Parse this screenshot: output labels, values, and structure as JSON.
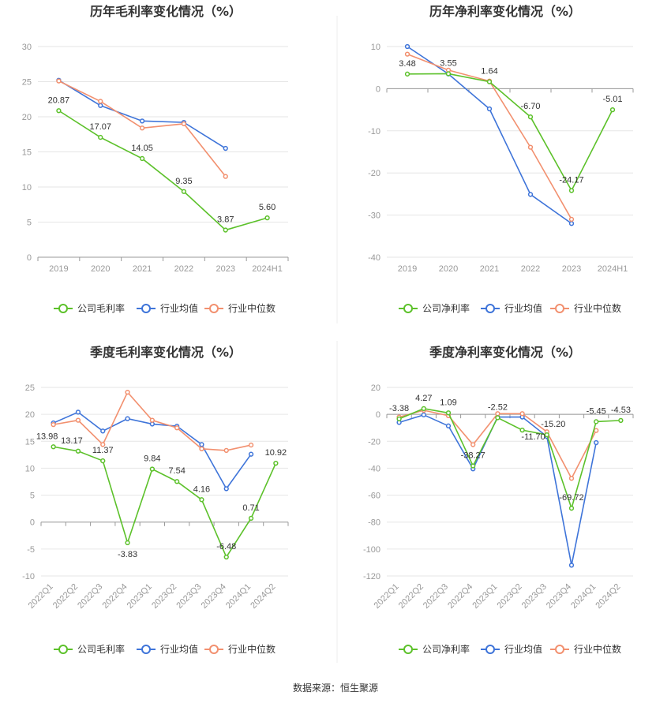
{
  "footer": {
    "source": "数据来源：恒生聚源"
  },
  "colors": {
    "company": "#5cc12a",
    "avg": "#3e74d9",
    "median": "#f2906f",
    "grid": "#e6e6e6",
    "axis": "#999999",
    "divider": "#eeeeee"
  },
  "chart_data": [
    {
      "type": "line",
      "title": "历年毛利率变化情况（%）",
      "categories": [
        "2019",
        "2020",
        "2021",
        "2022",
        "2023",
        "2024H1"
      ],
      "ylim": [
        0,
        30
      ],
      "yticks": [
        0,
        5,
        10,
        15,
        20,
        25,
        30
      ],
      "rotate_x": false,
      "legend": [
        "公司毛利率",
        "行业均值",
        "行业中位数"
      ],
      "series": [
        {
          "name": "公司毛利率",
          "color": "company",
          "values": [
            20.87,
            17.07,
            14.05,
            9.35,
            3.87,
            5.6
          ],
          "labels": [
            "20.87",
            "17.07",
            "14.05",
            "9.35",
            "3.87",
            "5.60"
          ]
        },
        {
          "name": "行业均值",
          "color": "avg",
          "values": [
            25.2,
            21.6,
            19.4,
            19.2,
            15.5,
            null
          ]
        },
        {
          "name": "行业中位数",
          "color": "median",
          "values": [
            25.1,
            22.2,
            18.4,
            19.0,
            11.5,
            null
          ]
        }
      ]
    },
    {
      "type": "line",
      "title": "历年净利率变化情况（%）",
      "categories": [
        "2019",
        "2020",
        "2021",
        "2022",
        "2023",
        "2024H1"
      ],
      "ylim": [
        -40,
        10
      ],
      "yticks": [
        -40,
        -30,
        -20,
        -10,
        0,
        10
      ],
      "rotate_x": false,
      "legend": [
        "公司净利率",
        "行业均值",
        "行业中位数"
      ],
      "series": [
        {
          "name": "公司净利率",
          "color": "company",
          "values": [
            3.48,
            3.55,
            1.64,
            -6.7,
            -24.17,
            -5.01
          ],
          "labels": [
            "3.48",
            "3.55",
            "1.64",
            "-6.70",
            "-24.17",
            "-5.01"
          ]
        },
        {
          "name": "行业均值",
          "color": "avg",
          "values": [
            10.0,
            3.5,
            -4.8,
            -25.1,
            -32.0,
            null
          ]
        },
        {
          "name": "行业中位数",
          "color": "median",
          "values": [
            8.2,
            4.4,
            1.8,
            -13.9,
            -31.0,
            null
          ]
        }
      ]
    },
    {
      "type": "line",
      "title": "季度毛利率变化情况（%）",
      "categories": [
        "2022Q1",
        "2022Q2",
        "2022Q3",
        "2022Q4",
        "2023Q1",
        "2023Q2",
        "2023Q3",
        "2023Q4",
        "2024Q1",
        "2024Q2"
      ],
      "ylim": [
        -10,
        25
      ],
      "yticks": [
        -10,
        -5,
        0,
        5,
        10,
        15,
        20,
        25
      ],
      "rotate_x": true,
      "legend": [
        "公司毛利率",
        "行业均值",
        "行业中位数"
      ],
      "series": [
        {
          "name": "公司毛利率",
          "color": "company",
          "values": [
            13.98,
            13.17,
            11.37,
            -3.83,
            9.84,
            7.54,
            4.16,
            -6.48,
            0.71,
            10.92
          ],
          "labels": [
            "13.98",
            "13.17",
            "11.37",
            "-3.83",
            "9.84",
            "7.54",
            "4.16",
            "-6.48",
            "0.71",
            "10.92"
          ]
        },
        {
          "name": "行业均值",
          "color": "avg",
          "values": [
            18.4,
            20.4,
            16.9,
            19.2,
            18.2,
            17.8,
            14.4,
            6.2,
            12.6,
            null
          ]
        },
        {
          "name": "行业中位数",
          "color": "median",
          "values": [
            18.1,
            18.9,
            14.4,
            24.1,
            18.9,
            17.5,
            13.6,
            13.3,
            14.3,
            null
          ]
        }
      ]
    },
    {
      "type": "line",
      "title": "季度净利率变化情况（%）",
      "categories": [
        "2022Q1",
        "2022Q2",
        "2022Q3",
        "2022Q4",
        "2023Q1",
        "2023Q2",
        "2023Q3",
        "2023Q4",
        "2024Q1",
        "2024Q2"
      ],
      "ylim": [
        -120,
        20
      ],
      "yticks": [
        -120,
        -100,
        -80,
        -60,
        -40,
        -20,
        0,
        20
      ],
      "rotate_x": true,
      "legend": [
        "公司净利率",
        "行业均值",
        "行业中位数"
      ],
      "series": [
        {
          "name": "公司净利率",
          "color": "company",
          "values": [
            -3.38,
            4.27,
            1.09,
            -38.27,
            -2.52,
            -11.7,
            -15.2,
            -69.72,
            -5.45,
            -4.53
          ],
          "labels": [
            "-3.38",
            "4.27",
            "1.09",
            "-38.27",
            "-2.52",
            "-11.70",
            "-15.20",
            "-69.72",
            "-5.45",
            "-4.53"
          ]
        },
        {
          "name": "行业均值",
          "color": "avg",
          "values": [
            -6.0,
            -0.4,
            -8.6,
            -40.5,
            -2.0,
            -2.0,
            -16.5,
            -112.0,
            -21.0,
            null
          ]
        },
        {
          "name": "行业中位数",
          "color": "median",
          "values": [
            -2.0,
            3.0,
            -1.0,
            -22.5,
            0.5,
            0.5,
            -13.0,
            -47.5,
            -12.0,
            null
          ]
        }
      ]
    }
  ]
}
